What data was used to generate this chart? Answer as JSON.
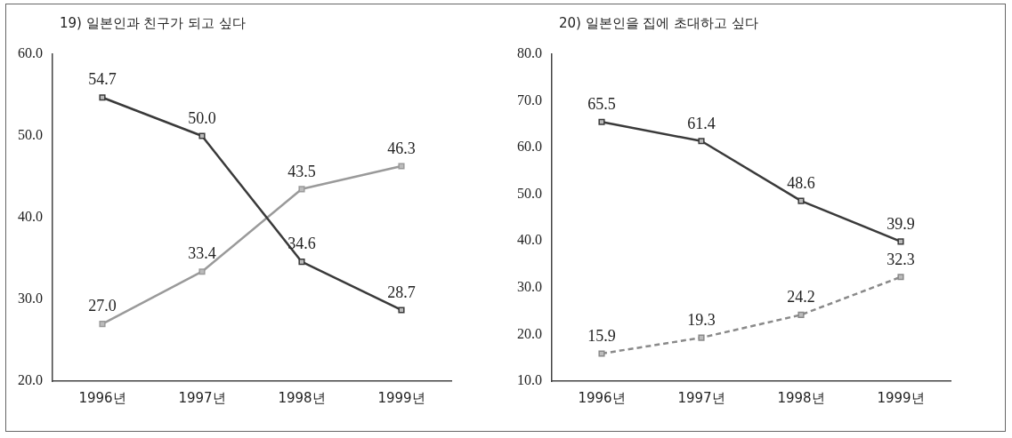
{
  "chart_data": [
    {
      "type": "line",
      "title": "19) 일본인과 친구가 되고 싶다",
      "categories": [
        "1996년",
        "1997년",
        "1998년",
        "1999년"
      ],
      "series": [
        {
          "color": "#3a3a3a",
          "values": [
            54.7,
            50.0,
            34.6,
            28.7
          ],
          "value_labels": [
            "54.7",
            "50.0",
            "34.6",
            "28.7"
          ]
        },
        {
          "color": "#9a9a9a",
          "values": [
            27.0,
            33.4,
            43.5,
            46.3
          ],
          "value_labels": [
            "27.0",
            "33.4",
            "43.5",
            "46.3"
          ]
        }
      ],
      "ylim": [
        20,
        60
      ],
      "yticks": [
        {
          "value": 20,
          "label": "20.0"
        },
        {
          "value": 30,
          "label": "30.0"
        },
        {
          "value": 40,
          "label": "40.0"
        },
        {
          "value": 50,
          "label": "50.0"
        },
        {
          "value": 60,
          "label": "60.0"
        }
      ],
      "marker": "square",
      "grid": false
    },
    {
      "type": "line",
      "title": "20) 일본인을 집에 초대하고 싶다",
      "categories": [
        "1996년",
        "1997년",
        "1998년",
        "1999년"
      ],
      "series": [
        {
          "color": "#3a3a3a",
          "values": [
            65.5,
            61.4,
            48.6,
            39.9
          ],
          "data_labels": true
        },
        {
          "color": "#8a8a8a",
          "values": [
            15.9,
            19.3,
            24.2,
            32.3
          ],
          "line_style": "dashed",
          "data_labels": true
        }
      ],
      "ylim": [
        10,
        80
      ],
      "yticks": [
        {
          "value": 10,
          "label": "10.0"
        },
        {
          "value": 20,
          "label": "20.0"
        },
        {
          "value": 30,
          "label": "30.0"
        },
        {
          "value": 40,
          "label": "40.0"
        },
        {
          "value": 50,
          "label": "50.0"
        },
        {
          "value": 60,
          "label": "60.0"
        },
        {
          "value": 70,
          "label": "70.0"
        },
        {
          "value": 80,
          "label": "80.0"
        }
      ],
      "marker": "square",
      "grid": false
    }
  ]
}
